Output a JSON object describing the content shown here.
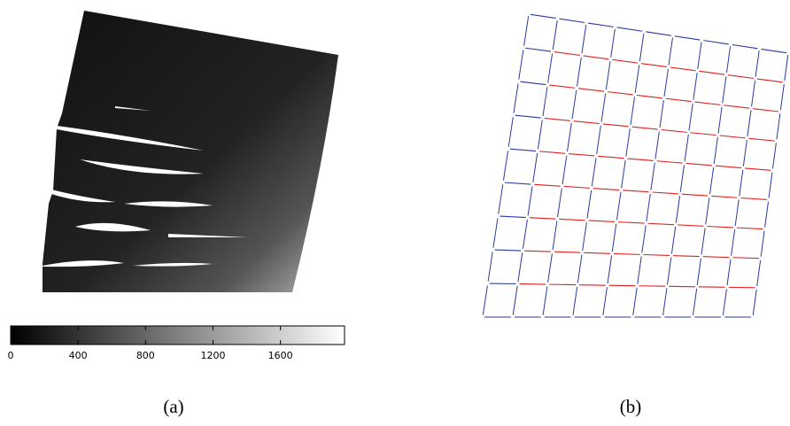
{
  "colorbar": {
    "clim": [
      0,
      1980
    ],
    "ticks": [
      0,
      400,
      800,
      1200,
      1600
    ]
  },
  "captions": [
    "(a)",
    "(b)"
  ]
}
